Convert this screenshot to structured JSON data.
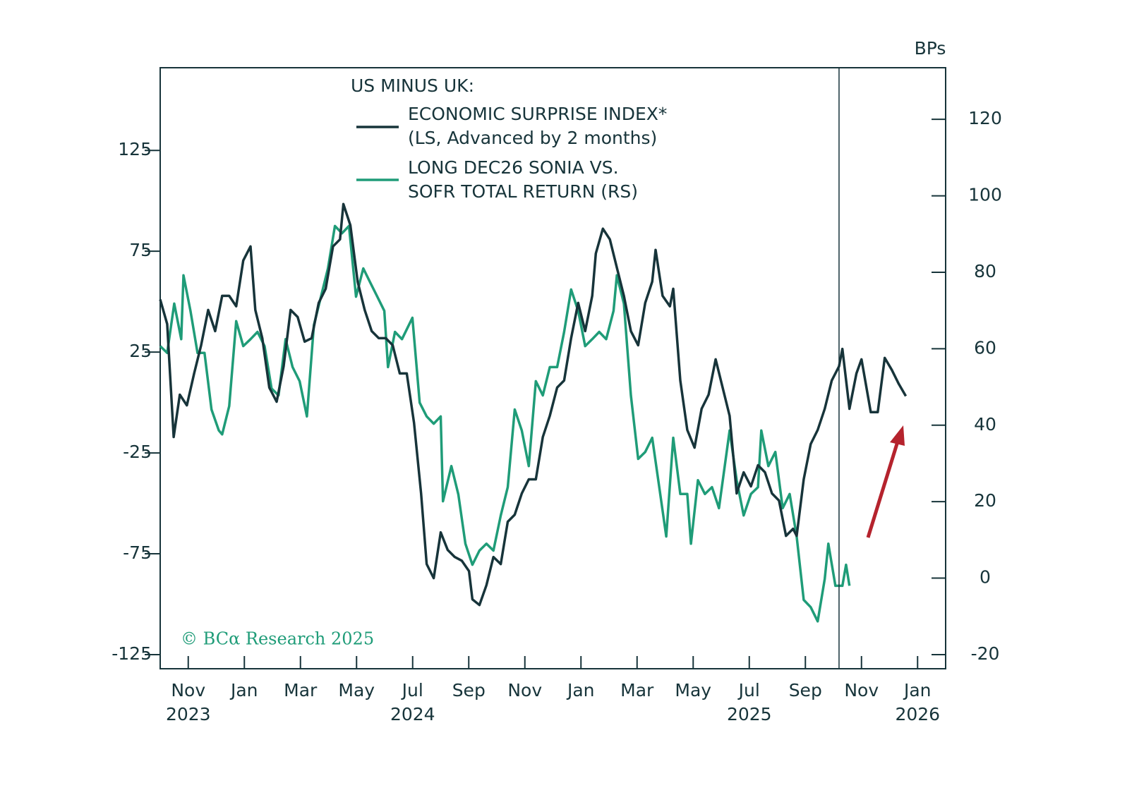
{
  "chart_data": {
    "type": "line",
    "legend_title": "US MINUS UK:",
    "y2_label": "BPs",
    "source": "© BCα Research 2025",
    "xlim": [
      0,
      28
    ],
    "xticks": [
      {
        "value": 1,
        "label": "Nov"
      },
      {
        "value": 3,
        "label": "Jan"
      },
      {
        "value": 5,
        "label": "Mar"
      },
      {
        "value": 7,
        "label": "May"
      },
      {
        "value": 9,
        "label": "Jul"
      },
      {
        "value": 11,
        "label": "Sep"
      },
      {
        "value": 13,
        "label": "Nov"
      },
      {
        "value": 15,
        "label": "Jan"
      },
      {
        "value": 17,
        "label": "Mar"
      },
      {
        "value": 19,
        "label": "May"
      },
      {
        "value": 21,
        "label": "Jul"
      },
      {
        "value": 23,
        "label": "Sep"
      },
      {
        "value": 25,
        "label": "Nov"
      },
      {
        "value": 27,
        "label": "Jan"
      }
    ],
    "x_year_labels": [
      {
        "value": 1,
        "label": "2023"
      },
      {
        "value": 9,
        "label": "2024"
      },
      {
        "value": 21,
        "label": "2025"
      },
      {
        "value": 27,
        "label": "2026"
      }
    ],
    "ylim": [
      -132,
      166
    ],
    "yticks": [
      -125,
      -75,
      -25,
      25,
      75,
      125
    ],
    "y2lim": [
      -23.7,
      133.5
    ],
    "y2ticks": [
      -20,
      0,
      20,
      40,
      60,
      80,
      100,
      120
    ],
    "vline": 24.2,
    "series": [
      {
        "name": "ECONOMIC SURPRISE INDEX*\n(LS, Advanced by 2 months)",
        "color": "#17343a",
        "axis": "y",
        "x": [
          0,
          0.25,
          0.48,
          0.7,
          0.95,
          1.21,
          1.46,
          1.71,
          1.96,
          2.21,
          2.46,
          2.71,
          2.96,
          3.22,
          3.39,
          3.64,
          3.89,
          4.15,
          4.4,
          4.65,
          4.9,
          5.15,
          5.4,
          5.65,
          5.9,
          6.16,
          6.41,
          6.53,
          6.78,
          7.04,
          7.29,
          7.54,
          7.79,
          8.04,
          8.29,
          8.54,
          8.79,
          9.05,
          9.3,
          9.5,
          9.75,
          10,
          10.25,
          10.5,
          10.75,
          11.01,
          11.13,
          11.38,
          11.63,
          11.88,
          12.14,
          12.39,
          12.64,
          12.89,
          13.14,
          13.39,
          13.64,
          13.89,
          14.15,
          14.4,
          14.65,
          14.9,
          15.15,
          15.4,
          15.53,
          15.78,
          16.03,
          16.28,
          16.53,
          16.78,
          17.04,
          17.29,
          17.54,
          17.66,
          17.91,
          18.17,
          18.29,
          18.54,
          18.79,
          19.05,
          19.3,
          19.55,
          19.8,
          20.05,
          20.3,
          20.55,
          20.8,
          21.06,
          21.31,
          21.56,
          21.81,
          22.06,
          22.31,
          22.56,
          22.69,
          22.94,
          23.19,
          23.44,
          23.69,
          23.94,
          24.2,
          24.32,
          24.57,
          24.82,
          25,
          25.33,
          25.58,
          25.83,
          26.08,
          26.33,
          26.58
        ],
        "values": [
          51.1,
          38.9,
          -17.1,
          3.9,
          -1.4,
          14.4,
          28.4,
          45.9,
          35.4,
          52.9,
          52.9,
          47.7,
          70.4,
          77.4,
          45.9,
          31.9,
          7.4,
          0.4,
          17.9,
          45.9,
          42.4,
          30.2,
          31.9,
          49.4,
          56.4,
          77.4,
          80.9,
          98.4,
          87.9,
          59.9,
          45.9,
          35.4,
          31.9,
          31.9,
          28.4,
          14.4,
          14.4,
          -10.1,
          -45.1,
          -80.1,
          -87.1,
          -64.4,
          -73.1,
          -76.6,
          -78.4,
          -83.6,
          -97.6,
          -100.4,
          -90.6,
          -76.6,
          -80.1,
          -59.1,
          -55.6,
          -45.1,
          -38.1,
          -38.1,
          -17.1,
          -6.6,
          7.4,
          10.9,
          31.9,
          49.4,
          35.4,
          52.9,
          73.9,
          86.2,
          80.9,
          66.9,
          52.9,
          35.4,
          28.4,
          49.4,
          59.9,
          75.7,
          52.9,
          47.7,
          56.4,
          10.9,
          -13.6,
          -22.4,
          -3.1,
          3.9,
          21.4,
          7.4,
          -6.6,
          -45.1,
          -34.6,
          -41.6,
          -31.1,
          -34.6,
          -45.1,
          -48.6,
          -66.1,
          -62.6,
          -66.1,
          -38.1,
          -20.6,
          -13.6,
          -3.1,
          10.9,
          17.9,
          26.6,
          -3.1,
          14.4,
          21.4,
          -4.8,
          -4.8,
          22.1,
          16.2,
          9.2,
          3.2
        ]
      },
      {
        "name": "LONG DEC26 SONIA VS.\nSOFR TOTAL RETURN (RS)",
        "color": "#1f9c78",
        "axis": "y2",
        "x": [
          0,
          0.25,
          0.5,
          0.75,
          0.83,
          1.08,
          1.33,
          1.58,
          1.83,
          2.09,
          2.21,
          2.46,
          2.71,
          2.96,
          3.22,
          3.47,
          3.72,
          3.97,
          4.22,
          4.47,
          4.72,
          4.97,
          5.23,
          5.48,
          5.73,
          5.98,
          6.23,
          6.48,
          6.73,
          6.98,
          7.24,
          7.49,
          7.74,
          7.99,
          8.12,
          8.37,
          8.62,
          8.99,
          9.25,
          9.5,
          9.75,
          10,
          10.08,
          10.38,
          10.63,
          10.88,
          11.13,
          11.38,
          11.63,
          11.88,
          12.14,
          12.39,
          12.64,
          12.89,
          13.14,
          13.39,
          13.64,
          13.89,
          14.15,
          14.4,
          14.65,
          14.9,
          15.15,
          15.4,
          15.65,
          15.9,
          16.16,
          16.28,
          16.53,
          16.78,
          17.04,
          17.29,
          17.54,
          17.79,
          18.04,
          18.29,
          18.54,
          18.79,
          18.92,
          19.17,
          19.42,
          19.67,
          19.92,
          20.3,
          20.55,
          20.8,
          21.06,
          21.31,
          21.43,
          21.68,
          21.93,
          22.19,
          22.44,
          22.69,
          22.94,
          23.19,
          23.44,
          23.69,
          23.82,
          24.07,
          24.32,
          24.45,
          24.57
        ],
        "values": [
          60.7,
          58.9,
          71.8,
          62.5,
          79.2,
          69.9,
          58.9,
          58.9,
          44.1,
          38.6,
          37.6,
          45.0,
          67.2,
          60.7,
          62.5,
          64.4,
          60.7,
          49.6,
          47.8,
          62.5,
          55.2,
          51.5,
          42.3,
          66.2,
          73.6,
          81.0,
          92.1,
          90.2,
          92.1,
          73.6,
          81.0,
          77.3,
          73.6,
          69.9,
          55.2,
          64.4,
          62.5,
          68.1,
          45.9,
          42.3,
          40.4,
          42.3,
          20.1,
          29.3,
          21.9,
          9.0,
          3.5,
          7.2,
          9.0,
          7.2,
          16.4,
          23.8,
          44.1,
          38.6,
          29.3,
          51.5,
          47.8,
          55.2,
          55.2,
          64.4,
          75.5,
          69.9,
          60.7,
          62.5,
          64.4,
          62.5,
          69.9,
          79.2,
          71.8,
          47.8,
          31.2,
          33.0,
          36.7,
          23.8,
          10.9,
          36.7,
          22.0,
          22.0,
          9.0,
          25.6,
          22.0,
          23.8,
          18.3,
          38.6,
          25.6,
          16.4,
          22.0,
          23.8,
          38.6,
          29.3,
          33.0,
          18.3,
          22.0,
          10.9,
          -5.7,
          -7.6,
          -11.3,
          -0.2,
          9.0,
          -2.0,
          -2.0,
          3.5,
          -2.0
        ]
      }
    ]
  }
}
